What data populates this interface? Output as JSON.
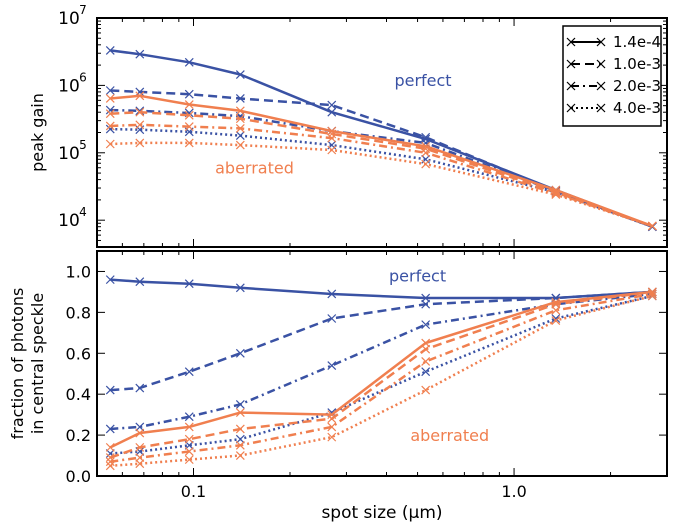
{
  "colors": {
    "perfect": "#3a52a4",
    "aberrated": "#f07f4f"
  },
  "chart_data": [
    {
      "type": "line",
      "ylabel": "peak gain",
      "xscale": "log",
      "yscale": "log",
      "xlim": [
        0.05,
        3.0
      ],
      "ylim": [
        4000,
        10000000
      ],
      "yticks": [
        10000,
        100000,
        1000000,
        10000000
      ],
      "ytick_labels": [
        [
          "10",
          "4"
        ],
        [
          "10",
          "5"
        ],
        [
          "10",
          "6"
        ],
        [
          "10",
          "7"
        ]
      ],
      "legend": {
        "location": "top-right",
        "entries": [
          {
            "label": "1.4e-4",
            "style": "solid"
          },
          {
            "label": "1.0e-3",
            "style": "dashed"
          },
          {
            "label": "2.0e-3",
            "style": "dashdot"
          },
          {
            "label": "4.0e-3",
            "style": "dotted"
          }
        ]
      },
      "annotations": [
        {
          "text": "perfect",
          "group": "perfect",
          "x": 0.52,
          "y": 1200000
        },
        {
          "text": "aberrated",
          "group": "aberrated",
          "x": 0.155,
          "y": 60000
        }
      ],
      "x": [
        0.055,
        0.068,
        0.097,
        0.14,
        0.27,
        0.53,
        1.35,
        2.7
      ],
      "series": [
        {
          "group": "perfect",
          "style": "solid",
          "values": [
            3300000,
            2900000,
            2200000,
            1450000,
            400000,
            160000,
            28000,
            8000
          ]
        },
        {
          "group": "perfect",
          "style": "dashed",
          "values": [
            840000,
            800000,
            740000,
            640000,
            510000,
            170000,
            27000,
            8000
          ]
        },
        {
          "group": "perfect",
          "style": "dashdot",
          "values": [
            430000,
            420000,
            390000,
            350000,
            210000,
            140000,
            27000,
            8000
          ]
        },
        {
          "group": "perfect",
          "style": "dotted",
          "values": [
            225000,
            220000,
            205000,
            180000,
            130000,
            80000,
            26000,
            8000
          ]
        },
        {
          "group": "aberrated",
          "style": "solid",
          "values": [
            640000,
            700000,
            520000,
            420000,
            210000,
            125000,
            28000,
            8200
          ]
        },
        {
          "group": "aberrated",
          "style": "dashed",
          "values": [
            380000,
            400000,
            360000,
            320000,
            190000,
            115000,
            26000,
            8200
          ]
        },
        {
          "group": "aberrated",
          "style": "dashdot",
          "values": [
            250000,
            260000,
            245000,
            230000,
            165000,
            100000,
            25000,
            8200
          ]
        },
        {
          "group": "aberrated",
          "style": "dotted",
          "values": [
            135000,
            140000,
            140000,
            130000,
            110000,
            68000,
            24000,
            8200
          ]
        }
      ]
    },
    {
      "type": "line",
      "xlabel": "spot size (μm)",
      "ylabel": [
        "fraction of photons",
        "in central speckle"
      ],
      "xscale": "log",
      "xlim": [
        0.05,
        3.0
      ],
      "ylim": [
        0.0,
        1.1
      ],
      "yticks": [
        0.0,
        0.2,
        0.4,
        0.6,
        0.8,
        1.0
      ],
      "ytick_labels": [
        "0.0",
        "0.2",
        "0.4",
        "0.6",
        "0.8",
        "1.0"
      ],
      "xticks": [
        0.1,
        1.0
      ],
      "xtick_labels": [
        "0.1",
        "1.0"
      ],
      "annotations": [
        {
          "text": "perfect",
          "group": "perfect",
          "x": 0.5,
          "y": 0.98
        },
        {
          "text": "aberrated",
          "group": "aberrated",
          "x": 0.63,
          "y": 0.2
        }
      ],
      "x": [
        0.055,
        0.068,
        0.097,
        0.14,
        0.27,
        0.53,
        1.35,
        2.7
      ],
      "series": [
        {
          "group": "perfect",
          "style": "solid",
          "values": [
            0.96,
            0.95,
            0.94,
            0.92,
            0.89,
            0.87,
            0.87,
            0.9
          ]
        },
        {
          "group": "perfect",
          "style": "dashed",
          "values": [
            0.42,
            0.43,
            0.51,
            0.6,
            0.77,
            0.84,
            0.87,
            0.9
          ]
        },
        {
          "group": "perfect",
          "style": "dashdot",
          "values": [
            0.23,
            0.24,
            0.29,
            0.35,
            0.54,
            0.74,
            0.84,
            0.89
          ]
        },
        {
          "group": "perfect",
          "style": "dotted",
          "values": [
            0.11,
            0.12,
            0.15,
            0.18,
            0.31,
            0.51,
            0.77,
            0.88
          ]
        },
        {
          "group": "aberrated",
          "style": "solid",
          "values": [
            0.14,
            0.21,
            0.24,
            0.31,
            0.3,
            0.65,
            0.85,
            0.9
          ]
        },
        {
          "group": "aberrated",
          "style": "dashed",
          "values": [
            0.09,
            0.14,
            0.18,
            0.23,
            0.28,
            0.62,
            0.84,
            0.9
          ]
        },
        {
          "group": "aberrated",
          "style": "dashdot",
          "values": [
            0.07,
            0.09,
            0.12,
            0.15,
            0.24,
            0.56,
            0.81,
            0.89
          ]
        },
        {
          "group": "aberrated",
          "style": "dotted",
          "values": [
            0.05,
            0.06,
            0.08,
            0.1,
            0.19,
            0.42,
            0.76,
            0.88
          ]
        }
      ]
    }
  ]
}
